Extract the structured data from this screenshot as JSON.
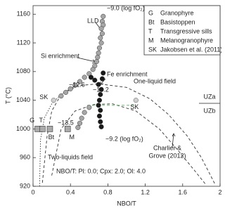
{
  "chart_data": {
    "type": "scatter",
    "xlabel": "NBO/T",
    "ylabel": "T (°C)",
    "xlim": [
      0,
      2
    ],
    "ylim": [
      920,
      1172
    ],
    "xticks": [
      0,
      0.4,
      0.8,
      1.2,
      1.6,
      2
    ],
    "yticks": [
      920,
      960,
      1000,
      1040,
      1080,
      1120,
      1160
    ],
    "series": [
      {
        "name": "Si enrichment",
        "color": "#a6a6a6",
        "x": [
          0.75,
          0.74,
          0.75,
          0.73,
          0.74,
          0.72,
          0.73,
          0.71,
          0.7,
          0.69,
          0.68,
          0.66,
          0.64,
          0.6,
          0.55,
          0.5,
          0.45,
          0.4,
          0.35,
          0.3,
          0.6,
          0.55,
          0.52,
          0.5,
          0.48
        ],
        "y": [
          1157,
          1150,
          1145,
          1140,
          1133,
          1127,
          1120,
          1113,
          1106,
          1100,
          1094,
          1088,
          1083,
          1077,
          1072,
          1066,
          1061,
          1056,
          1051,
          1046,
          1030,
          1023,
          1015,
          1008,
          1002
        ]
      },
      {
        "name": "Fe enrichment",
        "color": "#1a1a1a",
        "x": [
          0.75,
          0.74,
          0.62,
          0.66,
          0.7,
          0.73,
          0.72,
          0.71,
          0.7,
          0.72,
          0.71,
          0.72,
          0.73
        ],
        "y": [
          1078,
          1070,
          1072,
          1068,
          1062,
          1055,
          1048,
          1040,
          1033,
          1026,
          1018,
          1010,
          1003
        ]
      }
    ],
    "samples": [
      {
        "label": "G",
        "x": 0.05,
        "y": 1000,
        "shape": "square"
      },
      {
        "label": "T",
        "x": 0.1,
        "y": 1000,
        "shape": "square"
      },
      {
        "label": "Bt",
        "x": 0.18,
        "y": 1000,
        "shape": "square"
      },
      {
        "label": "M",
        "x": 0.37,
        "y": 1000,
        "shape": "square"
      },
      {
        "label": "SK",
        "x": 0.22,
        "y": 1040,
        "shape": "circle"
      },
      {
        "label": "SK",
        "x": 1.1,
        "y": 1040,
        "shape": "circle"
      }
    ],
    "curves": [
      {
        "style": "dashed",
        "color": "#333333",
        "x": [
          0.1,
          0.15,
          0.2,
          0.3,
          0.45,
          0.7,
          1.0,
          1.25,
          1.45,
          1.65,
          1.8,
          1.95
        ],
        "y": [
          925,
          990,
          1025,
          1048,
          1060,
          1063,
          1058,
          1042,
          1020,
          990,
          960,
          922
        ]
      },
      {
        "style": "dashed",
        "color": "#333333",
        "x": [
          0.2,
          0.3,
          0.45,
          0.65,
          0.85,
          1.1,
          1.35,
          1.55,
          1.72,
          1.85
        ],
        "y": [
          935,
          1000,
          1025,
          1034,
          1035,
          1025,
          1000,
          970,
          943,
          922
        ]
      },
      {
        "style": "dotted",
        "color": "#333333",
        "x": [
          0.07,
          0.08,
          0.12,
          0.2,
          0.3,
          0.45
        ],
        "y": [
          920,
          985,
          1015,
          1035,
          1048,
          1058
        ]
      },
      {
        "style": "dashed",
        "color": "#4caf50",
        "x": [
          0.58,
          1.08
        ],
        "y": [
          1033,
          1033
        ]
      }
    ],
    "legend": [
      {
        "symbol": "G",
        "label": "Granophyre"
      },
      {
        "symbol": "Bt",
        "label": "Basistoppen"
      },
      {
        "symbol": "T",
        "label": "Transgressive sills"
      },
      {
        "symbol": "M",
        "label": "Melanogranophyre"
      },
      {
        "symbol": "SK",
        "label": "Jakobsen et al. (2011)"
      }
    ],
    "annotations": {
      "top_fo2": "−9.0 (log fO₂)",
      "lld": "LLD",
      "fo2_a": "−12.6",
      "fo2_b": "−10.2",
      "fo2_c": "−13.5",
      "bottom_fo2": "−9.2 (log fO₂)",
      "one_liquid": "One-liquid field",
      "two_liquids": "Two-liquids field",
      "uza": "UZa",
      "uzb": "UZb",
      "charlier_1": "Charlier &",
      "charlier_2": "Grove (2012)",
      "nbo_note": "NBO/T: Pl: 0.0; Cpx: 2.0; Ol: 4.0"
    }
  }
}
